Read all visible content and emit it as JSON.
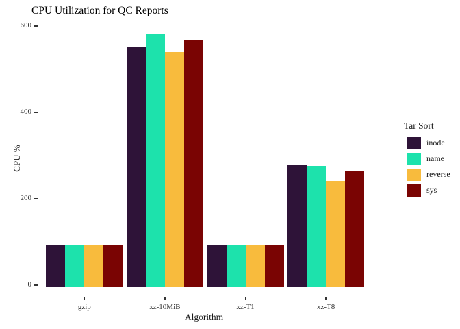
{
  "chart_data": {
    "type": "bar",
    "grouped": true,
    "title": "CPU Utilization for QC Reports",
    "xlabel": "Algorithm",
    "ylabel": "CPU %",
    "categories": [
      "gzip",
      "xz-10MiB",
      "xz-T1",
      "xz-T8"
    ],
    "series": [
      {
        "name": "inode",
        "color": "#2e1338",
        "values": [
          99,
          557,
          99,
          283
        ]
      },
      {
        "name": "name",
        "color": "#1de2ac",
        "values": [
          99,
          588,
          99,
          281
        ]
      },
      {
        "name": "reverse",
        "color": "#f8bb3d",
        "values": [
          99,
          545,
          99,
          246
        ]
      },
      {
        "name": "sys",
        "color": "#7a0403",
        "values": [
          99,
          573,
          99,
          268
        ]
      }
    ],
    "yticks": [
      0,
      200,
      400,
      600
    ],
    "ylim": [
      0,
      620
    ],
    "legend_title": "Tar Sort",
    "legend_position": "right",
    "grid": false,
    "background": "#ffffff"
  }
}
